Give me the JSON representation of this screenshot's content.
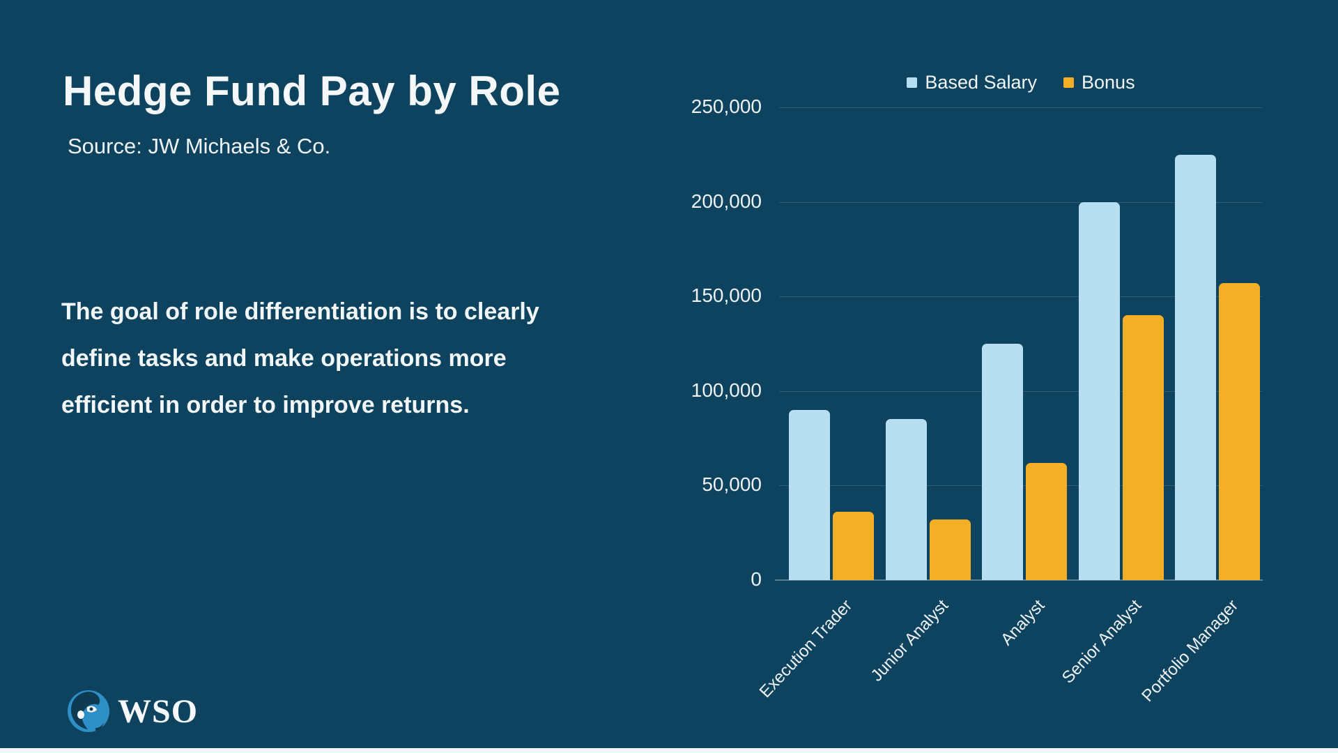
{
  "page": {
    "background": "#0d435e"
  },
  "header": {
    "title": "Hedge Fund Pay by Role",
    "source": "Source: JW Michaels & Co."
  },
  "description": {
    "lines": [
      "The goal of role differentiation is to clearly",
      "define tasks and make operations more",
      "efficient in order to improve returns."
    ]
  },
  "logo": {
    "text": "WSO"
  },
  "colors": {
    "background": "#0d435e",
    "based_salary": "#b8dff1",
    "bonus": "#f5af26",
    "text": "#f2f7fa",
    "logo_circle": "#2e8ec6",
    "logo_face": "#0e3a52"
  },
  "chart_data": {
    "type": "bar",
    "title": "",
    "xlabel": "",
    "ylabel": "",
    "categories": [
      "Execution Trader",
      "Junior Analyst",
      "Analyst",
      "Senior Analyst",
      "Portfolio Manager"
    ],
    "series": [
      {
        "name": "Based Salary",
        "color": "#b8dff1",
        "values": [
          90000,
          85000,
          125000,
          200000,
          225000
        ]
      },
      {
        "name": "Bonus",
        "color": "#f5af26",
        "values": [
          36000,
          32000,
          62000,
          140000,
          157000
        ]
      }
    ],
    "ylim": [
      0,
      250000
    ],
    "ytick_step": 50000,
    "ytick_labels": [
      "0",
      "50,000",
      "100,000",
      "150,000",
      "200,000",
      "250,000"
    ],
    "grid": true,
    "legend_position": "top"
  }
}
